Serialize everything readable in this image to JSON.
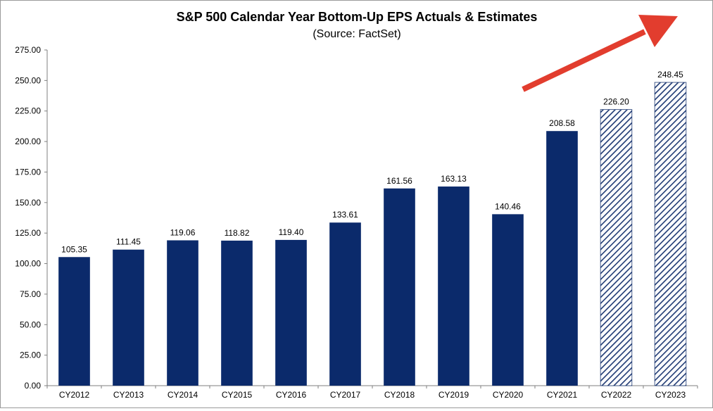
{
  "chart_data": {
    "type": "bar",
    "title": "S&P 500 Calendar Year Bottom-Up EPS Actuals & Estimates",
    "subtitle": "(Source: FactSet)",
    "categories": [
      "CY2012",
      "CY2013",
      "CY2014",
      "CY2015",
      "CY2016",
      "CY2017",
      "CY2018",
      "CY2019",
      "CY2020",
      "CY2021",
      "CY2022",
      "CY2023"
    ],
    "values": [
      105.35,
      111.45,
      119.06,
      118.82,
      119.4,
      133.61,
      161.56,
      163.13,
      140.46,
      208.58,
      226.2,
      248.45
    ],
    "data_labels": [
      "105.35",
      "111.45",
      "119.06",
      "118.82",
      "119.40",
      "133.61",
      "161.56",
      "163.13",
      "140.46",
      "208.58",
      "226.20",
      "248.45"
    ],
    "bar_style": [
      "actual",
      "actual",
      "actual",
      "actual",
      "actual",
      "actual",
      "actual",
      "actual",
      "actual",
      "actual",
      "estimate",
      "estimate"
    ],
    "ylim": [
      0,
      275
    ],
    "yticks": [
      0,
      25,
      50,
      75,
      100,
      125,
      150,
      175,
      200,
      225,
      250,
      275
    ],
    "ytick_labels": [
      "0.00",
      "25.00",
      "50.00",
      "75.00",
      "100.00",
      "125.00",
      "150.00",
      "175.00",
      "200.00",
      "225.00",
      "250.00",
      "275.00"
    ],
    "xlabel": "",
    "ylabel": "",
    "grid": false,
    "legend": "none",
    "annotations": [
      {
        "kind": "arrow",
        "direction": "up-right",
        "color": "#e23d2e"
      }
    ],
    "colors": {
      "actual_bar": "#0b2a6b",
      "estimate_hatch": "#1f3a74",
      "arrow": "#e23d2e",
      "axis": "#7f7f7f",
      "text": "#000000"
    }
  }
}
